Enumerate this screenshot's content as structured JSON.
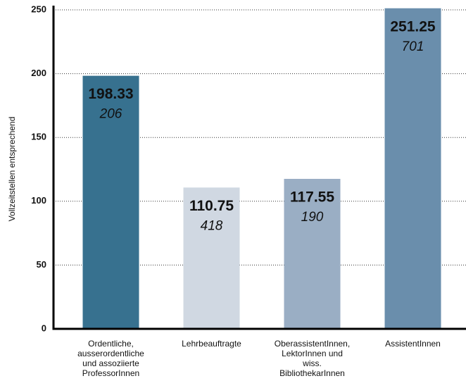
{
  "chart_data": {
    "type": "bar",
    "y_label": "Vollzeitstellen entsprechend",
    "categories": [
      [
        "Ordentliche,",
        "ausserordentliche",
        "und assoziierte",
        "ProfessorInnen"
      ],
      [
        "Lehrbeauftragte"
      ],
      [
        "OberassistentInnen,",
        "LektorInnen und",
        "wiss.",
        "BibliothekarInnen"
      ],
      [
        "AssistentInnen"
      ]
    ],
    "values": [
      198.33,
      110.75,
      117.55,
      251.25
    ],
    "secondary_values": [
      206,
      418,
      190,
      701
    ],
    "colors": [
      "#37718f",
      "#d0d8e2",
      "#9aaec4",
      "#6a8eac"
    ],
    "value_label_colors": [
      "#ffffff",
      "#222222",
      "#222222",
      "#ffffff"
    ],
    "ylim": [
      0,
      250
    ],
    "yticks": [
      0,
      50,
      100,
      150,
      200,
      250
    ],
    "grid": true
  }
}
